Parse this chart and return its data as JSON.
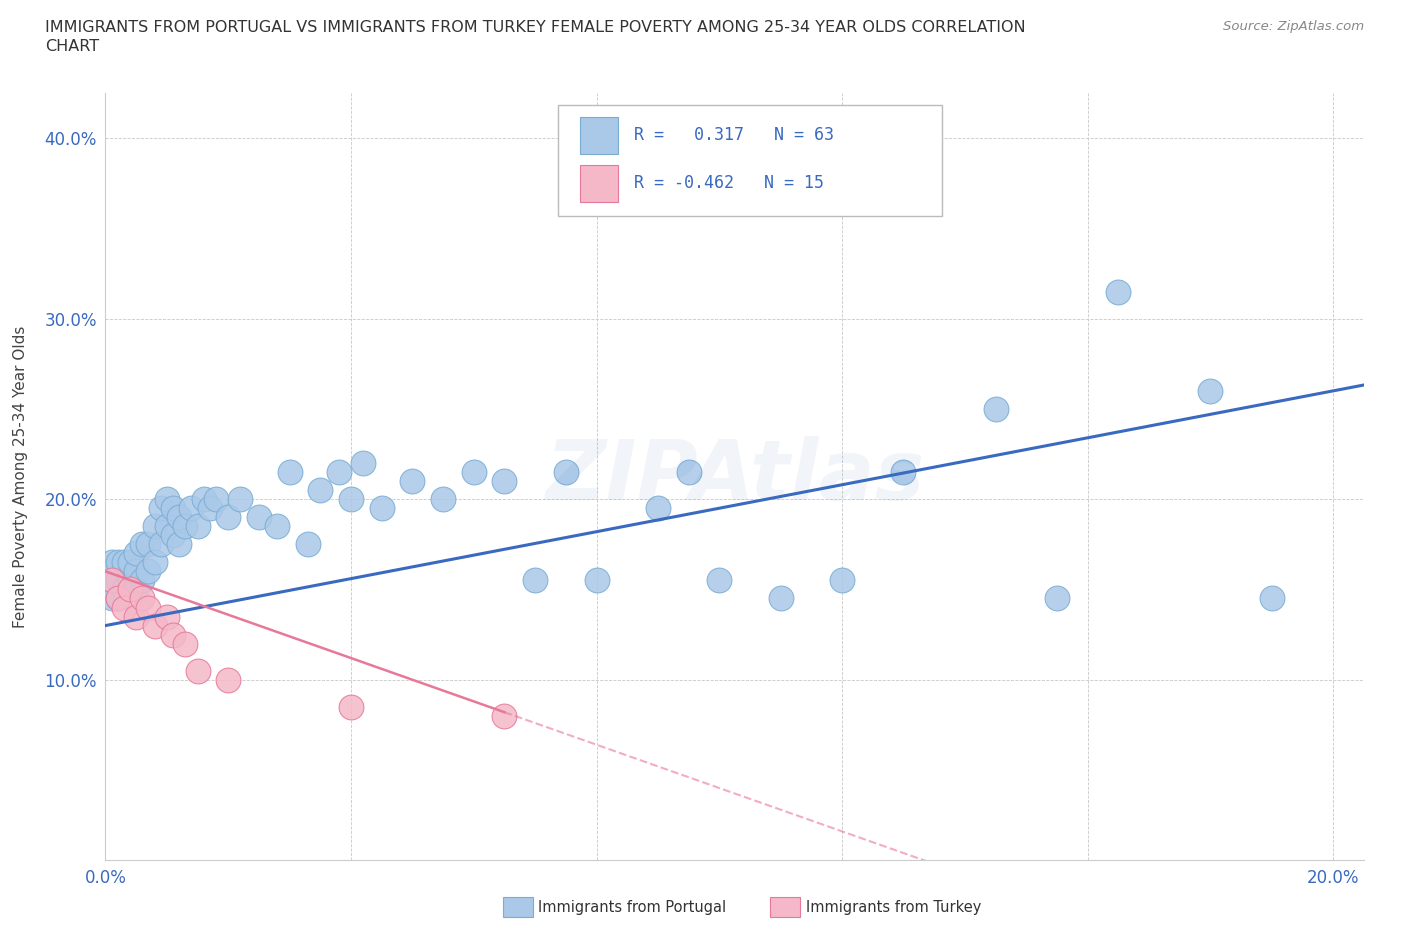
{
  "title_line1": "IMMIGRANTS FROM PORTUGAL VS IMMIGRANTS FROM TURKEY FEMALE POVERTY AMONG 25-34 YEAR OLDS CORRELATION",
  "title_line2": "CHART",
  "source": "Source: ZipAtlas.com",
  "ylabel": "Female Poverty Among 25-34 Year Olds",
  "xlim": [
    0.0,
    0.205
  ],
  "ylim": [
    0.0,
    0.425
  ],
  "xticks": [
    0.0,
    0.04,
    0.08,
    0.12,
    0.16,
    0.2
  ],
  "xticklabels": [
    "0.0%",
    "",
    "",
    "",
    "",
    "20.0%"
  ],
  "yticks": [
    0.0,
    0.1,
    0.2,
    0.3,
    0.4
  ],
  "yticklabels": [
    "",
    "10.0%",
    "20.0%",
    "30.0%",
    "40.0%"
  ],
  "portugal_color": "#aac8e8",
  "turkey_color": "#f4b8c8",
  "portugal_edge": "#7aadd4",
  "turkey_edge": "#e87898",
  "trendline_portugal_color": "#3a6abf",
  "trendline_turkey_color": "#e87898",
  "legend_R_portugal": "0.317",
  "legend_N_portugal": "63",
  "legend_R_turkey": "-0.462",
  "legend_N_turkey": "15",
  "portugal_x": [
    0.001,
    0.001,
    0.001,
    0.001,
    0.002,
    0.002,
    0.002,
    0.003,
    0.003,
    0.004,
    0.004,
    0.005,
    0.005,
    0.005,
    0.006,
    0.006,
    0.007,
    0.007,
    0.008,
    0.008,
    0.009,
    0.009,
    0.01,
    0.01,
    0.011,
    0.011,
    0.012,
    0.012,
    0.013,
    0.014,
    0.015,
    0.016,
    0.017,
    0.018,
    0.02,
    0.022,
    0.025,
    0.028,
    0.03,
    0.033,
    0.035,
    0.038,
    0.04,
    0.042,
    0.045,
    0.05,
    0.055,
    0.06,
    0.065,
    0.07,
    0.075,
    0.08,
    0.09,
    0.095,
    0.1,
    0.11,
    0.12,
    0.13,
    0.145,
    0.155,
    0.165,
    0.18,
    0.19
  ],
  "portugal_y": [
    0.145,
    0.155,
    0.16,
    0.165,
    0.145,
    0.155,
    0.165,
    0.15,
    0.165,
    0.155,
    0.165,
    0.15,
    0.16,
    0.17,
    0.155,
    0.175,
    0.16,
    0.175,
    0.165,
    0.185,
    0.195,
    0.175,
    0.185,
    0.2,
    0.18,
    0.195,
    0.175,
    0.19,
    0.185,
    0.195,
    0.185,
    0.2,
    0.195,
    0.2,
    0.19,
    0.2,
    0.19,
    0.185,
    0.215,
    0.175,
    0.205,
    0.215,
    0.2,
    0.22,
    0.195,
    0.21,
    0.2,
    0.215,
    0.21,
    0.155,
    0.215,
    0.155,
    0.195,
    0.215,
    0.155,
    0.145,
    0.155,
    0.215,
    0.25,
    0.145,
    0.315,
    0.26,
    0.145
  ],
  "turkey_x": [
    0.001,
    0.002,
    0.003,
    0.004,
    0.005,
    0.006,
    0.007,
    0.008,
    0.01,
    0.011,
    0.013,
    0.015,
    0.02,
    0.04,
    0.065
  ],
  "turkey_y": [
    0.155,
    0.145,
    0.14,
    0.15,
    0.135,
    0.145,
    0.14,
    0.13,
    0.135,
    0.125,
    0.12,
    0.105,
    0.1,
    0.085,
    0.08
  ]
}
